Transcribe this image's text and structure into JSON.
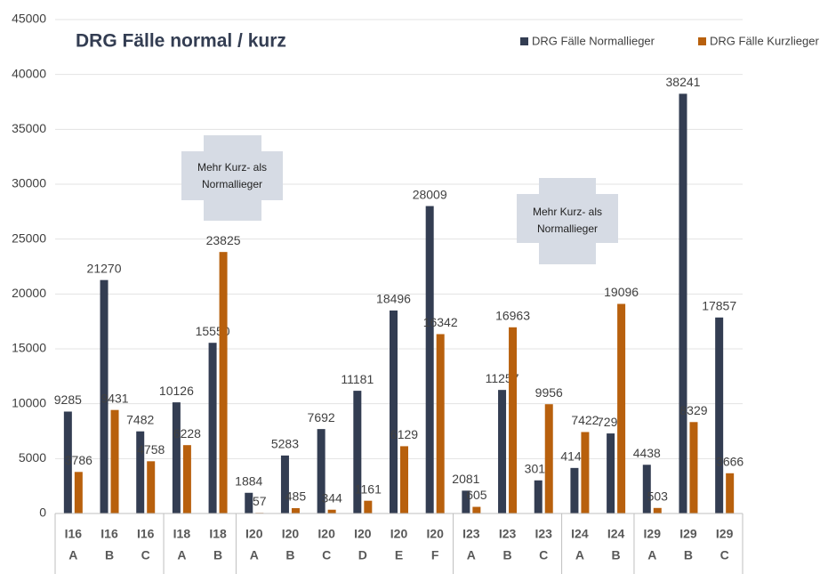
{
  "chart_data": {
    "type": "bar",
    "title": "DRG Fälle normal / kurz",
    "categories": [
      [
        "I16",
        "A"
      ],
      [
        "I16",
        "B"
      ],
      [
        "I16",
        "C"
      ],
      [
        "I18",
        "A"
      ],
      [
        "I18",
        "B"
      ],
      [
        "I20",
        "A"
      ],
      [
        "I20",
        "B"
      ],
      [
        "I20",
        "C"
      ],
      [
        "I20",
        "D"
      ],
      [
        "I20",
        "E"
      ],
      [
        "I20",
        "F"
      ],
      [
        "I23",
        "A"
      ],
      [
        "I23",
        "B"
      ],
      [
        "I23",
        "C"
      ],
      [
        "I24",
        "A"
      ],
      [
        "I24",
        "B"
      ],
      [
        "I29",
        "A"
      ],
      [
        "I29",
        "B"
      ],
      [
        "I29",
        "C"
      ]
    ],
    "series": [
      {
        "name": "DRG Fälle Normallieger",
        "color": "#333d52",
        "values": [
          9285,
          21270,
          7482,
          10126,
          15550,
          1884,
          5283,
          7692,
          11181,
          18496,
          28009,
          2081,
          11257,
          3017,
          4148,
          7292,
          4438,
          38241,
          17857
        ]
      },
      {
        "name": "DRG Fälle Kurzlieger",
        "color": "#b8600d",
        "values": [
          3786,
          9431,
          4758,
          6228,
          23825,
          57,
          485,
          344,
          1161,
          6129,
          16342,
          605,
          16963,
          9956,
          7422,
          19096,
          503,
          8329,
          3666
        ]
      }
    ],
    "ylim": [
      0,
      45000
    ],
    "yticks": [
      0,
      5000,
      10000,
      15000,
      20000,
      25000,
      30000,
      35000,
      40000,
      45000
    ],
    "grid": true,
    "annotations": [
      [
        "Mehr Kurz- als",
        "Normallieger"
      ],
      [
        "Mehr Kurz- als",
        "Normallieger"
      ]
    ]
  }
}
